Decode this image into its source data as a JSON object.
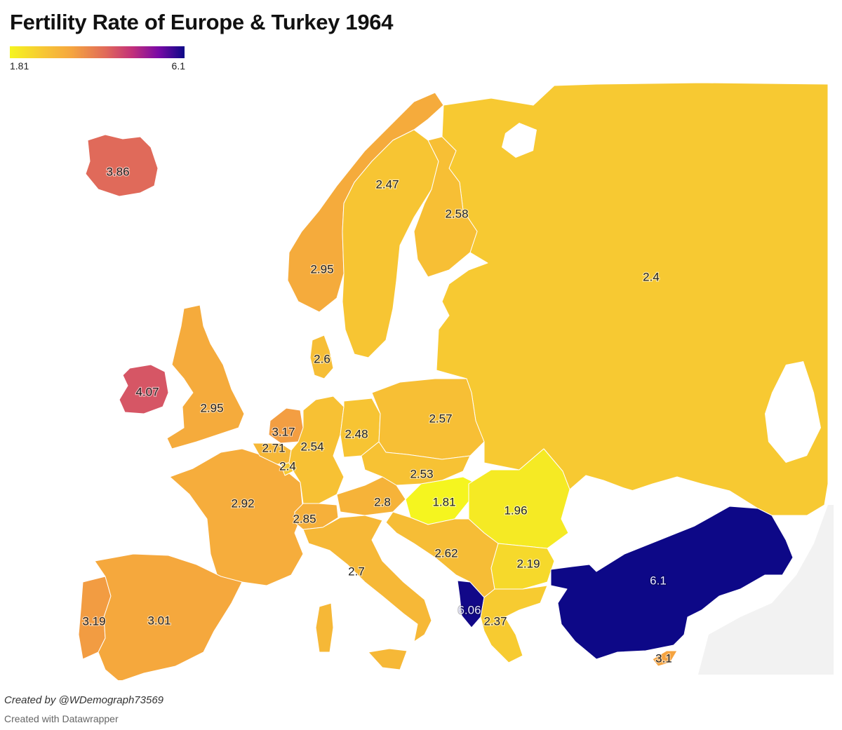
{
  "title": "Fertility Rate of Europe & Turkey 1964",
  "legend": {
    "min_label": "1.81",
    "max_label": "6.1",
    "min": 1.81,
    "max": 6.1
  },
  "footer": {
    "credit": "Created by @WDemograph73569",
    "tool": "Created with Datawrapper"
  },
  "colors": {
    "no_data": "#f2f2f2"
  },
  "regions": [
    {
      "id": "russia",
      "value": "2.4"
    },
    {
      "id": "iceland",
      "value": "3.86"
    },
    {
      "id": "ireland",
      "value": "4.07"
    },
    {
      "id": "uk",
      "value": "2.95"
    },
    {
      "id": "norway",
      "value": "2.95"
    },
    {
      "id": "sweden",
      "value": "2.47"
    },
    {
      "id": "finland",
      "value": "2.58"
    },
    {
      "id": "denmark",
      "value": "2.6"
    },
    {
      "id": "netherlands",
      "value": "3.17"
    },
    {
      "id": "belgium",
      "value": "2.71"
    },
    {
      "id": "luxembourg",
      "value": "2.4"
    },
    {
      "id": "west-germany",
      "value": "2.54"
    },
    {
      "id": "east-germany",
      "value": "2.48"
    },
    {
      "id": "poland",
      "value": "2.57"
    },
    {
      "id": "czechoslovakia",
      "value": "2.53"
    },
    {
      "id": "austria",
      "value": "2.8"
    },
    {
      "id": "hungary",
      "value": "1.81"
    },
    {
      "id": "romania",
      "value": "1.96"
    },
    {
      "id": "france",
      "value": "2.92"
    },
    {
      "id": "switzerland",
      "value": "2.85"
    },
    {
      "id": "yugoslavia",
      "value": "2.62"
    },
    {
      "id": "italy",
      "value": "2.7"
    },
    {
      "id": "bulgaria",
      "value": "2.19"
    },
    {
      "id": "albania",
      "value": "6.06"
    },
    {
      "id": "greece",
      "value": "2.37"
    },
    {
      "id": "turkey",
      "value": "6.1"
    },
    {
      "id": "cyprus",
      "value": "3.1"
    },
    {
      "id": "portugal",
      "value": "3.19"
    },
    {
      "id": "spain",
      "value": "3.01"
    }
  ]
}
